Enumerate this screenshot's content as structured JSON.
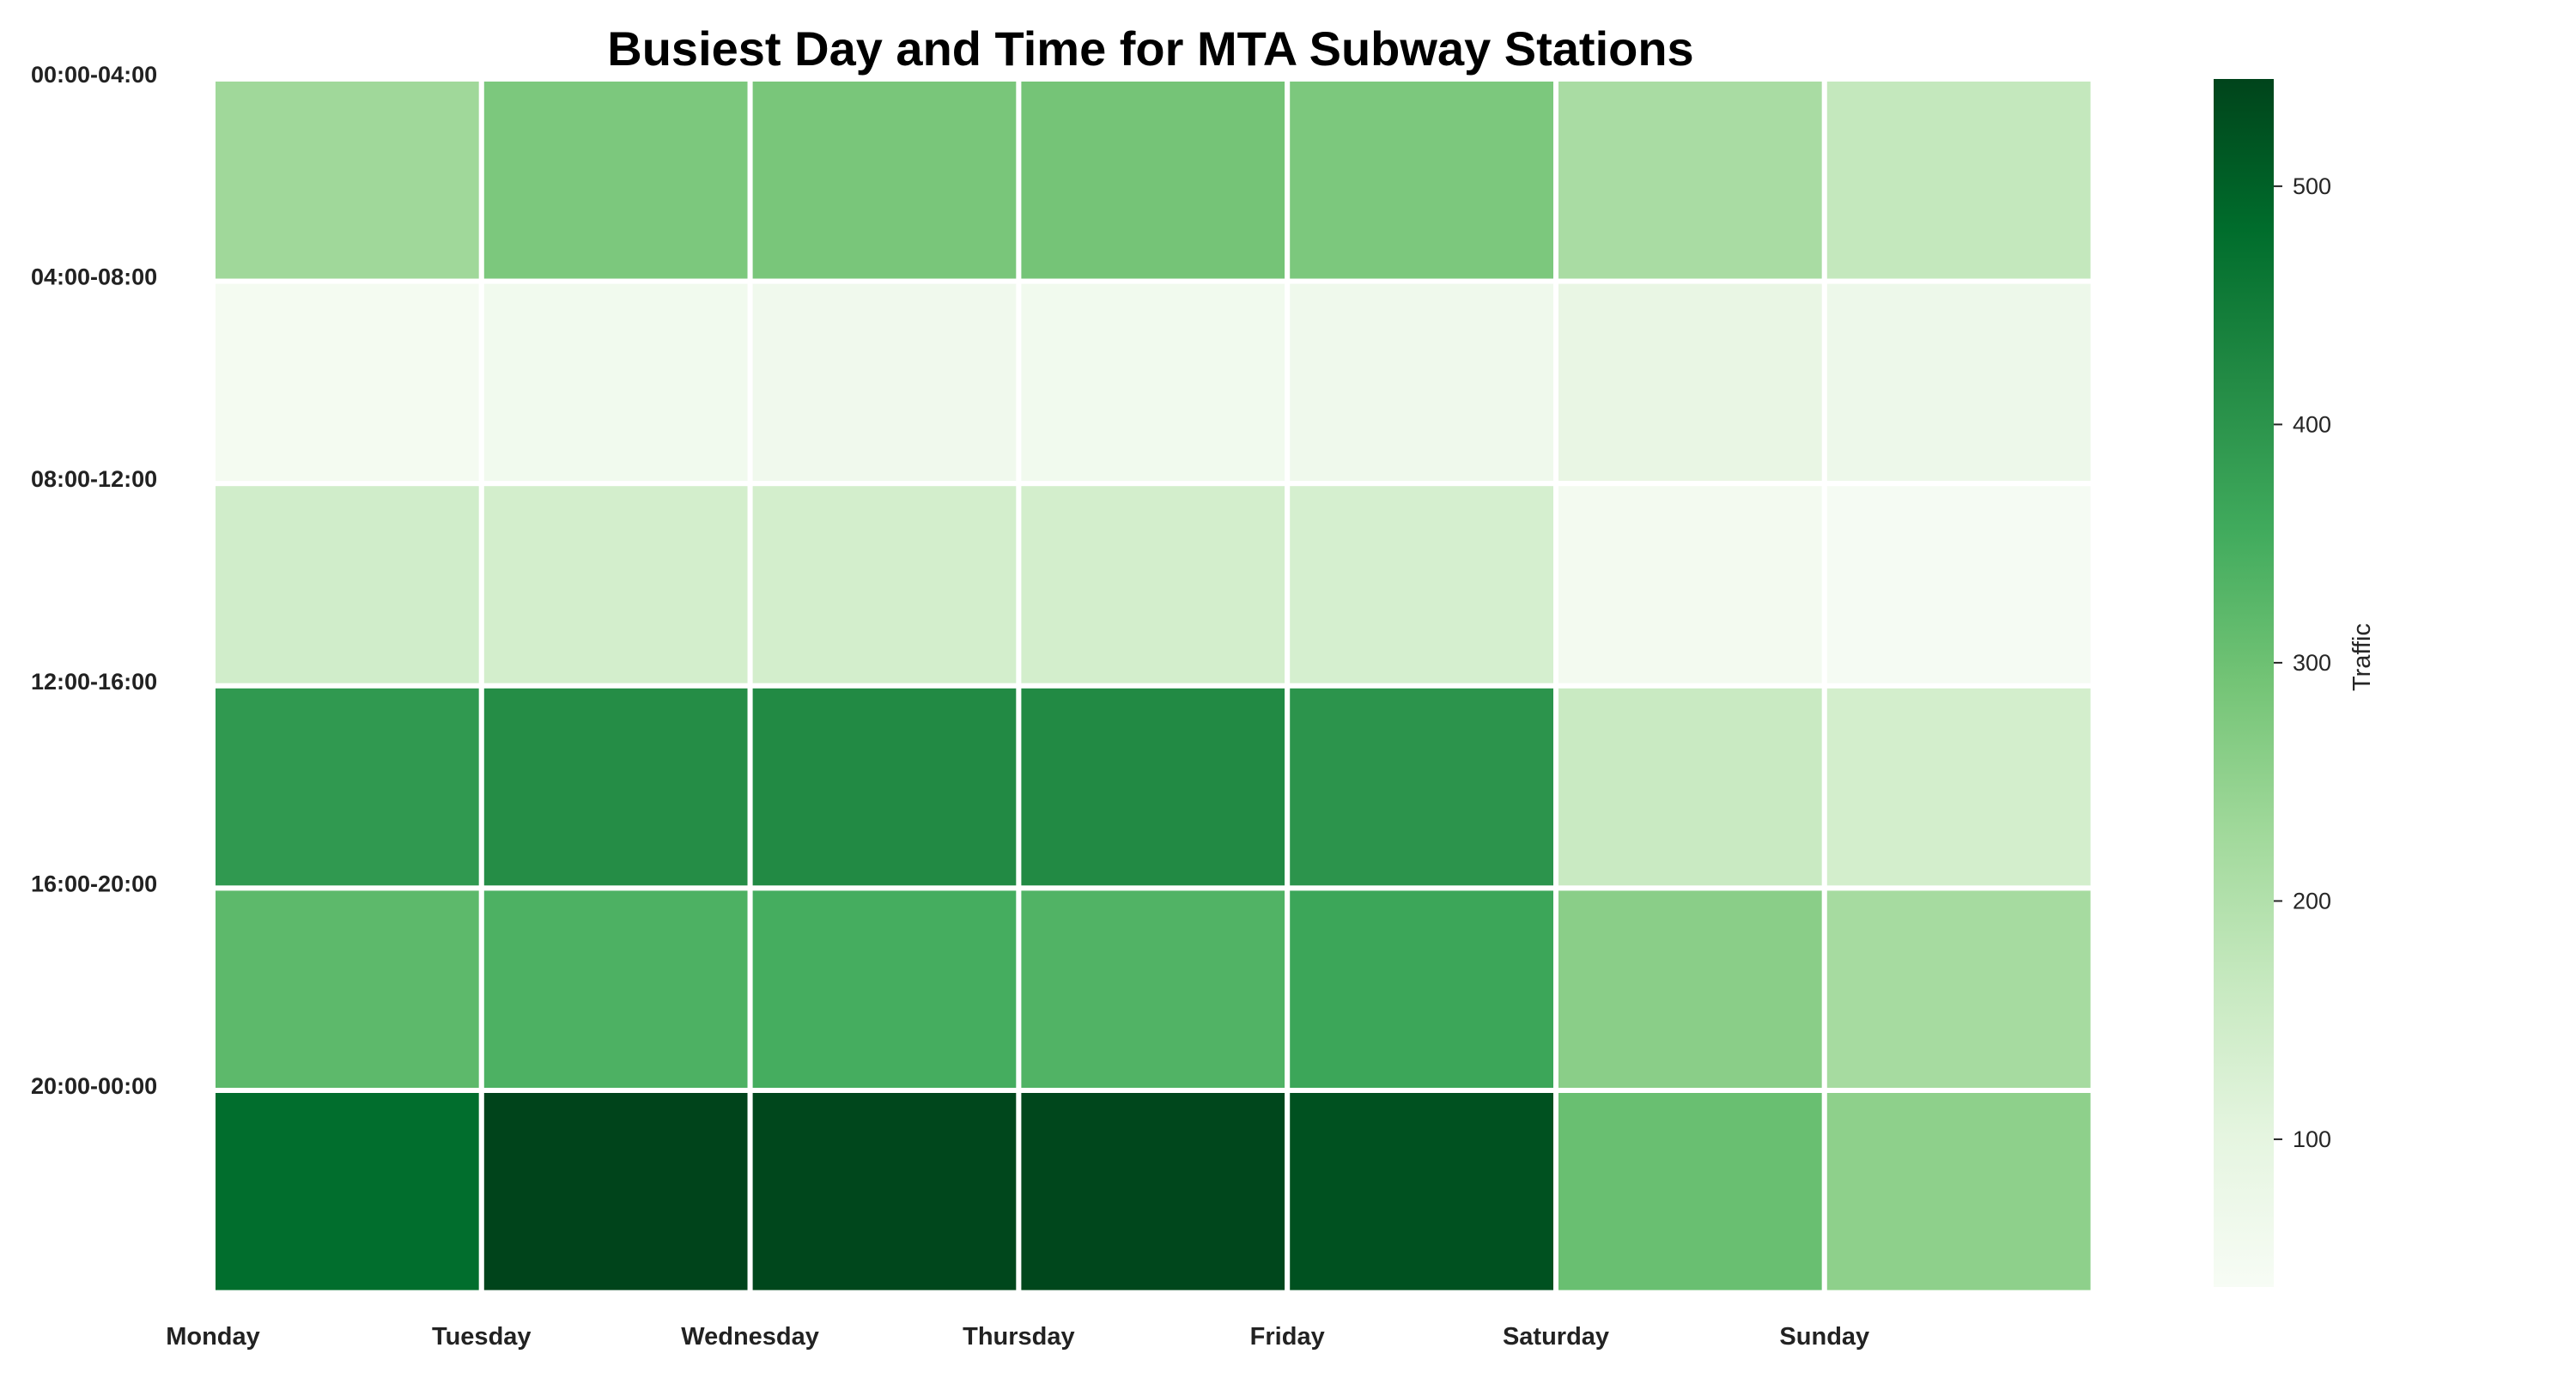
{
  "chart_data": {
    "type": "heatmap",
    "title": "Busiest Day and Time for MTA Subway Stations",
    "x_categories": [
      "Monday",
      "Tuesday",
      "Wednesday",
      "Thursday",
      "Friday",
      "Saturday",
      "Sunday"
    ],
    "y_categories": [
      "00:00-04:00",
      "04:00-08:00",
      "08:00-12:00",
      "12:00-16:00",
      "16:00-20:00",
      "20:00-00:00"
    ],
    "values": [
      [
        230,
        280,
        285,
        290,
        280,
        215,
        170
      ],
      [
        50,
        58,
        62,
        60,
        66,
        88,
        72
      ],
      [
        145,
        140,
        140,
        140,
        135,
        52,
        45
      ],
      [
        390,
        415,
        420,
        420,
        400,
        160,
        140
      ],
      [
        320,
        340,
        350,
        335,
        365,
        260,
        220
      ],
      [
        480,
        545,
        540,
        540,
        525,
        305,
        255
      ]
    ],
    "colorbar": {
      "label": "Traffic",
      "min": 38,
      "max": 545,
      "ticks": [
        100,
        200,
        300,
        400,
        500
      ],
      "colormap": "Greens",
      "colors": [
        "#f7fcf5",
        "#e5f5e0",
        "#c7e9c0",
        "#a1d99b",
        "#74c476",
        "#41ab5d",
        "#238b45",
        "#006d2c",
        "#00441b"
      ]
    },
    "grid": true,
    "cell_border_color": "#ffffff"
  }
}
